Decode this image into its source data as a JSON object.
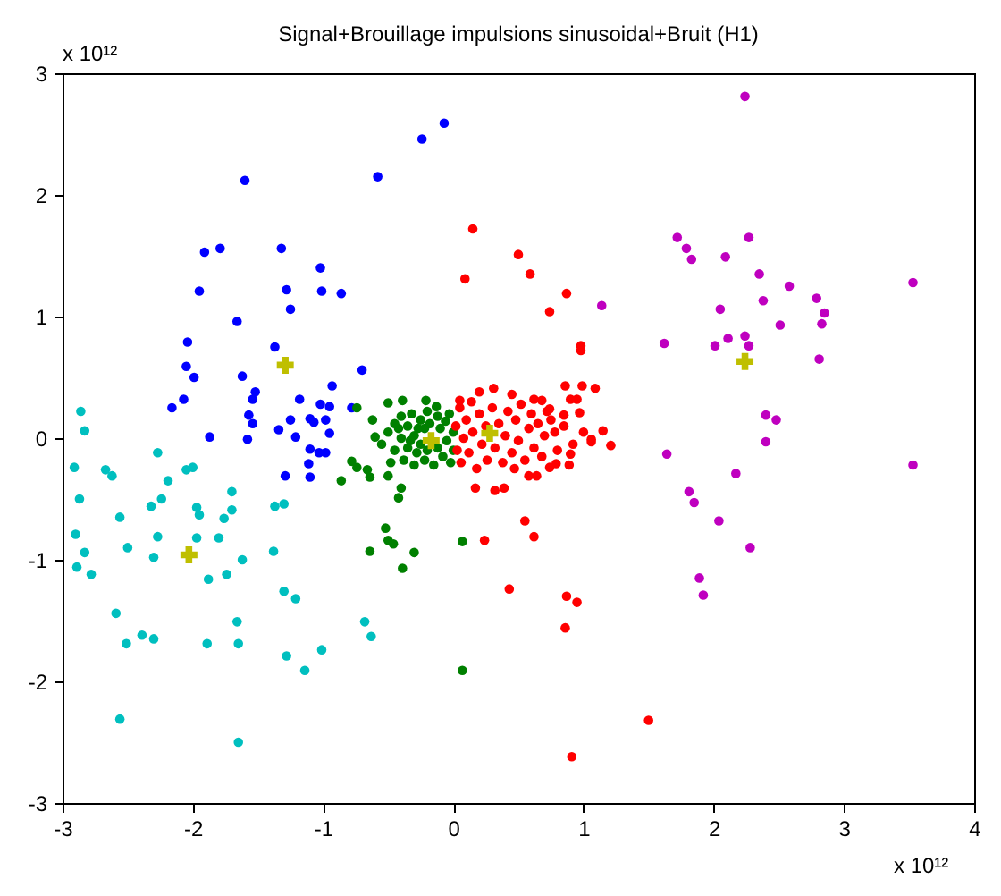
{
  "chart_data": {
    "type": "scatter",
    "title": "Signal+Brouillage impulsions sinusoidal+Bruit (H1)",
    "annotations": [
      "x 10¹²",
      "x 10¹²"
    ],
    "xlim": [
      -3,
      4
    ],
    "ylim": [
      -3,
      3
    ],
    "xticks": [
      -3,
      -2,
      -1,
      0,
      1,
      2,
      3,
      4
    ],
    "yticks": [
      -3,
      -2,
      -1,
      0,
      1,
      2,
      3
    ],
    "marker": "circle",
    "series": [
      {
        "color": "#0000ff",
        "x": [
          -0.07,
          -0.24,
          -1.6,
          -0.58,
          -1.91,
          -1.79,
          -1.32,
          -1.02,
          -1.95,
          -1.28,
          -1.01,
          -0.86,
          -1.25,
          -1.66,
          -2.04,
          -1.37,
          -2.05,
          -1.99,
          -1.62,
          -0.7,
          -0.93,
          -1.52,
          -1.54,
          -2.07,
          -2.16,
          -1.18,
          -1.02,
          -0.95,
          -0.78,
          -1.57,
          -1.54,
          -1.25,
          -1.1,
          -1.07,
          -0.98,
          -1.34,
          -0.95,
          -1.87,
          -1.58,
          -1.21,
          -1.1,
          -1.03,
          -0.98,
          -1.11,
          -1.29,
          -1.1
        ],
        "values": [
          2.59,
          2.46,
          2.12,
          2.15,
          1.53,
          1.56,
          1.56,
          1.4,
          1.21,
          1.22,
          1.21,
          1.19,
          1.06,
          0.96,
          0.79,
          0.75,
          0.59,
          0.5,
          0.51,
          0.56,
          0.43,
          0.38,
          0.32,
          0.32,
          0.25,
          0.32,
          0.28,
          0.26,
          0.25,
          0.19,
          0.12,
          0.15,
          0.16,
          0.13,
          0.15,
          0.07,
          0.04,
          0.01,
          -0.01,
          0.01,
          -0.09,
          -0.12,
          -0.12,
          -0.21,
          -0.31,
          -0.32
        ]
      },
      {
        "color": "#00bfbf",
        "x": [
          -2.86,
          -2.83,
          -2.91,
          -2.67,
          -2.62,
          -2.27,
          -2.19,
          -2.05,
          -2.0,
          -2.87,
          -2.56,
          -2.32,
          -2.24,
          -1.97,
          -1.95,
          -1.7,
          -1.7,
          -1.76,
          -1.37,
          -1.3,
          -2.9,
          -2.27,
          -1.97,
          -1.8,
          -2.83,
          -2.89,
          -2.5,
          -2.3,
          -1.62,
          -1.38,
          -2.78,
          -1.88,
          -1.74,
          -2.59,
          -1.3,
          -1.21,
          -2.39,
          -2.3,
          -2.51,
          -1.89,
          -1.66,
          -1.65,
          -1.28,
          -1.01,
          -1.14,
          -0.68,
          -0.63,
          -2.56,
          -1.65
        ],
        "values": [
          0.22,
          0.06,
          -0.24,
          -0.26,
          -0.31,
          -0.12,
          -0.35,
          -0.26,
          -0.24,
          -0.5,
          -0.65,
          -0.56,
          -0.5,
          -0.57,
          -0.63,
          -0.44,
          -0.59,
          -0.66,
          -0.56,
          -0.54,
          -0.79,
          -0.81,
          -0.82,
          -0.82,
          -0.94,
          -1.06,
          -0.9,
          -0.98,
          -1.0,
          -0.93,
          -1.12,
          -1.16,
          -1.12,
          -1.44,
          -1.26,
          -1.32,
          -1.62,
          -1.65,
          -1.69,
          -1.69,
          -1.51,
          -1.69,
          -1.79,
          -1.74,
          -1.91,
          -1.51,
          -1.63,
          -2.31,
          -2.5
        ]
      },
      {
        "color": "#008000",
        "x": [
          -0.86,
          -0.78,
          -0.74,
          -0.66,
          -0.64,
          -0.5,
          -0.4,
          -0.42,
          -0.52,
          -0.5,
          -0.46,
          -0.64,
          -0.3,
          -0.39,
          0.07,
          0.07,
          -0.74,
          -0.5,
          -0.39,
          -0.21,
          -0.13,
          -0.62,
          -0.6,
          -0.5,
          -0.45,
          -0.45,
          -0.4,
          -0.4,
          -0.38,
          -0.35,
          -0.35,
          -0.32,
          -0.3,
          -0.3,
          -0.28,
          -0.25,
          -0.25,
          -0.22,
          -0.22,
          -0.2,
          -0.2,
          -0.18,
          -0.15,
          -0.12,
          -0.12,
          -0.1,
          -0.08,
          -0.06,
          -0.05,
          -0.03,
          -0.02,
          0.0,
          0.0,
          -0.55,
          -0.48,
          -0.42,
          -0.33,
          -0.27
        ],
        "values": [
          -0.35,
          -0.19,
          -0.24,
          -0.26,
          -0.32,
          -0.31,
          -0.41,
          -0.49,
          -0.74,
          -0.84,
          -0.87,
          -0.93,
          -0.94,
          -1.07,
          -0.85,
          -1.91,
          0.25,
          0.29,
          0.31,
          0.31,
          0.26,
          0.15,
          0.01,
          0.05,
          0.12,
          -0.1,
          0.18,
          0.0,
          -0.18,
          0.1,
          -0.08,
          0.2,
          0.02,
          -0.22,
          -0.12,
          0.15,
          -0.05,
          0.08,
          -0.18,
          0.22,
          -0.1,
          0.12,
          -0.22,
          0.18,
          -0.08,
          0.08,
          -0.15,
          0.14,
          -0.02,
          0.2,
          -0.2,
          0.05,
          -0.1,
          -0.05,
          -0.2,
          0.08,
          -0.02,
          0.08
        ]
      },
      {
        "color": "#ff0000",
        "x": [
          0.15,
          0.5,
          0.09,
          0.59,
          0.87,
          0.74,
          0.98,
          0.98,
          0.86,
          0.99,
          1.09,
          0.62,
          0.68,
          0.9,
          0.95,
          0.74,
          0.85,
          0.97,
          1.15,
          0.75,
          1.06,
          1.21,
          1.06,
          0.9,
          0.89,
          0.79,
          0.74,
          0.64,
          0.58,
          0.47,
          0.39,
          0.32,
          0.55,
          0.62,
          0.43,
          0.87,
          0.95,
          0.86,
          1.5,
          0.91,
          0.17,
          0.24,
          0.02,
          0.03,
          0.05,
          0.06,
          0.08,
          0.1,
          0.12,
          0.14,
          0.15,
          0.18,
          0.2,
          0.22,
          0.25,
          0.26,
          0.3,
          0.32,
          0.35,
          0.38,
          0.4,
          0.42,
          0.45,
          0.48,
          0.5,
          0.52,
          0.55,
          0.58,
          0.6,
          0.62,
          0.65,
          0.68,
          0.7,
          0.72,
          0.78,
          0.8,
          0.85,
          0.92,
          1.0,
          0.05,
          0.31,
          0.2,
          0.45
        ],
        "values": [
          1.72,
          1.51,
          1.31,
          1.35,
          1.19,
          1.04,
          0.76,
          0.72,
          0.43,
          0.43,
          0.41,
          0.32,
          0.31,
          0.32,
          0.32,
          0.24,
          0.19,
          0.21,
          0.06,
          0.15,
          -0.01,
          -0.06,
          -0.03,
          -0.13,
          -0.22,
          -0.21,
          -0.24,
          -0.31,
          -0.31,
          -0.25,
          -0.41,
          -0.43,
          -0.68,
          -0.81,
          -1.24,
          -1.3,
          -1.35,
          -1.56,
          -2.32,
          -2.62,
          -0.41,
          -0.84,
          0.1,
          -0.1,
          0.25,
          -0.2,
          0.0,
          0.15,
          -0.12,
          0.3,
          0.05,
          -0.25,
          0.2,
          -0.05,
          0.1,
          -0.18,
          0.25,
          -0.08,
          0.12,
          -0.2,
          0.02,
          0.22,
          -0.12,
          0.15,
          -0.02,
          0.28,
          -0.18,
          0.08,
          0.2,
          -0.08,
          0.12,
          -0.15,
          0.02,
          0.22,
          0.05,
          -0.1,
          0.1,
          -0.05,
          0.05,
          0.31,
          0.41,
          0.38,
          0.36
        ]
      },
      {
        "color": "#bf00bf",
        "x": [
          2.24,
          1.72,
          1.79,
          1.83,
          2.27,
          2.09,
          2.35,
          2.58,
          2.38,
          2.79,
          2.85,
          2.83,
          2.51,
          2.05,
          1.14,
          3.53,
          1.62,
          2.01,
          2.11,
          2.24,
          2.27,
          2.81,
          2.4,
          2.48,
          2.4,
          1.64,
          3.53,
          2.17,
          1.81,
          1.85,
          2.04,
          2.28,
          1.89,
          1.92
        ],
        "values": [
          2.81,
          1.65,
          1.56,
          1.47,
          1.65,
          1.49,
          1.35,
          1.25,
          1.13,
          1.15,
          1.03,
          0.94,
          0.93,
          1.06,
          1.09,
          1.28,
          0.78,
          0.76,
          0.82,
          0.84,
          0.76,
          0.65,
          0.19,
          0.15,
          -0.03,
          -0.13,
          -0.22,
          -0.29,
          -0.44,
          -0.53,
          -0.68,
          -0.9,
          -1.15,
          -1.29
        ]
      },
      {
        "color": "#bfbf00",
        "marker": "cross",
        "x": [
          -1.29,
          -2.03,
          -0.17,
          0.28,
          2.24
        ],
        "values": [
          0.6,
          -0.96,
          -0.02,
          0.04,
          0.63
        ]
      }
    ]
  }
}
